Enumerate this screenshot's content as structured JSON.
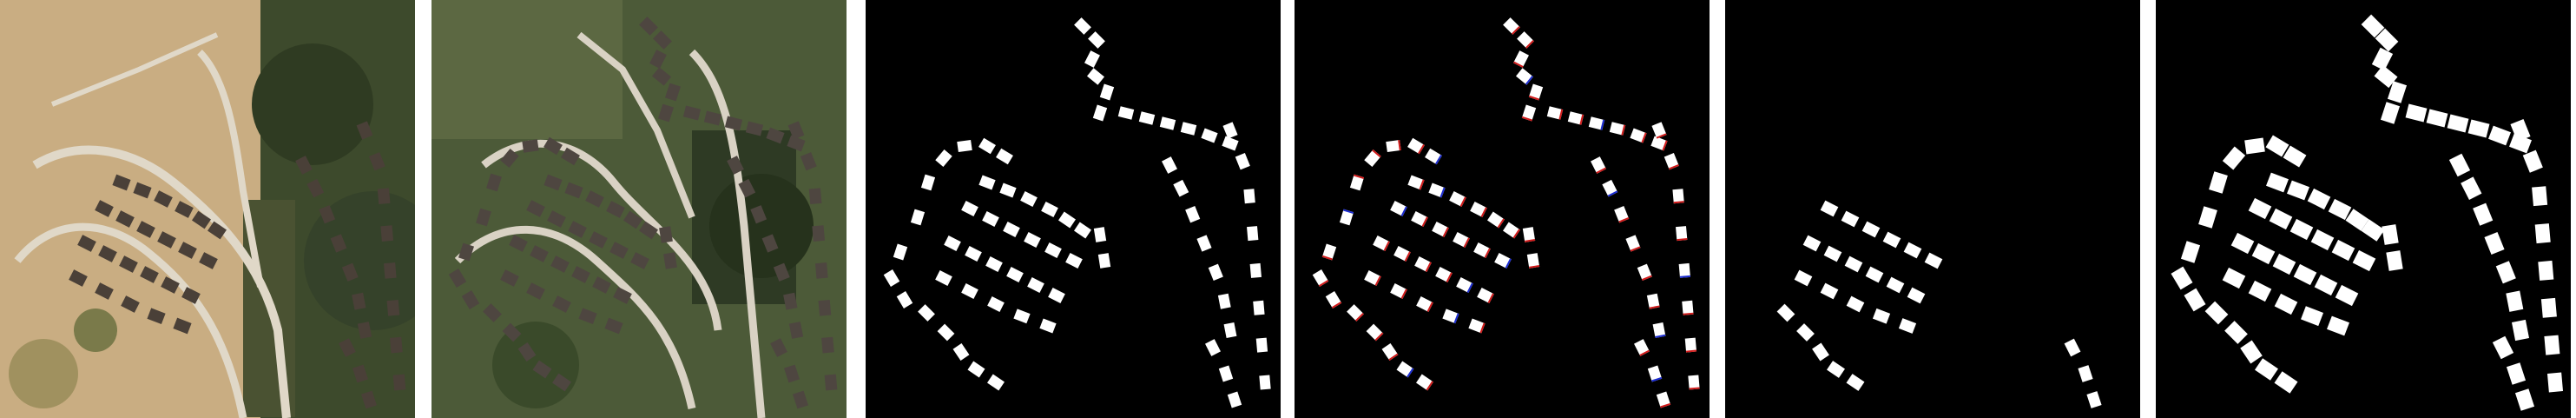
{
  "figure": {
    "panels": [
      {
        "id": "p1",
        "kind": "satellite-before",
        "caption": ""
      },
      {
        "id": "p2",
        "kind": "satellite-after",
        "caption": ""
      },
      {
        "id": "p3",
        "kind": "ground-truth-mask",
        "caption": ""
      },
      {
        "id": "p4",
        "kind": "prediction-overlay",
        "caption": ""
      },
      {
        "id": "p5",
        "kind": "prediction-mask-a",
        "caption": ""
      },
      {
        "id": "p6",
        "kind": "prediction-mask-b",
        "caption": ""
      }
    ],
    "colors": {
      "background": "#ffffff",
      "mask_bg": "#000000",
      "mask_fg": "#ffffff",
      "false_positive": "#d11a1a",
      "false_negative": "#1a2bd1",
      "dry_soil": "#c9ad82",
      "vegetation": "#3d4a2c",
      "roof": "#4e4640",
      "road": "#d9d2c4"
    }
  }
}
